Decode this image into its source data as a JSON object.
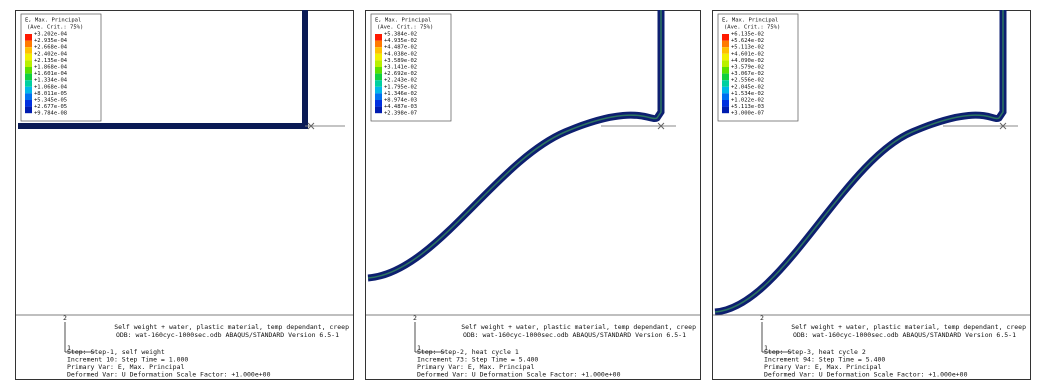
{
  "panels": [
    {
      "legend": {
        "title": "E, Max. Principal",
        "criterion": "(Ave. Crit.: 75%)",
        "values": [
          "+3.202e-04",
          "+2.935e-04",
          "+2.668e-04",
          "+2.402e-04",
          "+2.135e-04",
          "+1.868e-04",
          "+1.601e-04",
          "+1.334e-04",
          "+1.068e-04",
          "+8.011e-05",
          "+5.345e-05",
          "+2.677e-05",
          "+9.784e-08"
        ]
      },
      "triad": {
        "axis_2": "2",
        "axis_1": "1"
      },
      "footer": {
        "description": "Self weight + water, plastic material, temp dependant, creep",
        "odb": "ODB: wat-160cyc-1000sec.odb    ABAQUS/STANDARD Version 6.5-1",
        "step": "Step: Step-1, self weight",
        "increment": "Increment    10: Step Time =    1.000",
        "primary_var": "Primary Var: E, Max. Principal",
        "deformed_var": "Deformed Var: U   Deformation Scale Factor: +1.000e+00"
      }
    },
    {
      "legend": {
        "title": "E, Max. Principal",
        "criterion": "(Ave. Crit.: 75%)",
        "values": [
          "+5.384e-02",
          "+4.935e-02",
          "+4.487e-02",
          "+4.038e-02",
          "+3.589e-02",
          "+3.141e-02",
          "+2.692e-02",
          "+2.243e-02",
          "+1.795e-02",
          "+1.346e-02",
          "+8.974e-03",
          "+4.487e-03",
          "+2.398e-07"
        ]
      },
      "triad": {
        "axis_2": "2",
        "axis_1": "1"
      },
      "footer": {
        "description": "Self weight + water, plastic material, temp dependant, creep",
        "odb": "ODB: wat-160cyc-1000sec.odb    ABAQUS/STANDARD Version 6.5-1",
        "step": "Step: Step-2, heat cycle 1",
        "increment": "Increment    73: Step Time =    5.400",
        "primary_var": "Primary Var: E, Max. Principal",
        "deformed_var": "Deformed Var: U   Deformation Scale Factor: +1.000e+00"
      }
    },
    {
      "legend": {
        "title": "E, Max. Principal",
        "criterion": "(Ave. Crit.: 75%)",
        "values": [
          "+6.135e-02",
          "+5.624e-02",
          "+5.113e-02",
          "+4.601e-02",
          "+4.090e-02",
          "+3.579e-02",
          "+3.067e-02",
          "+2.556e-02",
          "+2.045e-02",
          "+1.534e-02",
          "+1.022e-02",
          "+5.113e-03",
          "+3.000e-07"
        ]
      },
      "triad": {
        "axis_2": "2",
        "axis_1": "1"
      },
      "footer": {
        "description": "Self weight + water, plastic material, temp dependant, creep",
        "odb": "ODB: wat-160cyc-1000sec.odb    ABAQUS/STANDARD Version 6.5-1",
        "step": "Step: Step-3, heat cycle 2",
        "increment": "Increment    94: Step Time =    5.400",
        "primary_var": "Primary Var: E, Max. Principal",
        "deformed_var": "Deformed Var: U   Deformation Scale Factor: +1.000e+00"
      }
    }
  ]
}
